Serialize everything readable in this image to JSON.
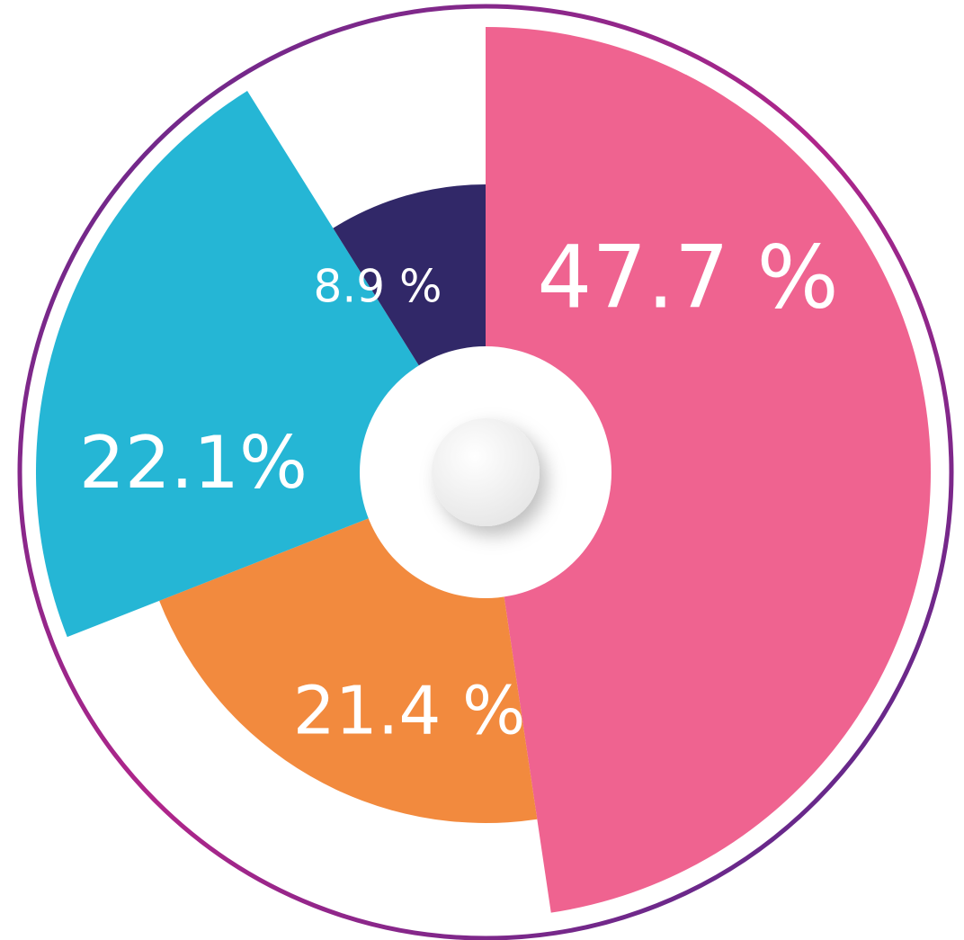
{
  "chart_data": {
    "type": "pie",
    "categories": [
      null,
      null,
      null,
      null
    ],
    "values": [
      47.7,
      21.4,
      22.1,
      8.9
    ],
    "value_labels": [
      "47.7 %",
      "21.4 %",
      "22.1%",
      "8.9 %"
    ],
    "colors": [
      "#ef6390",
      "#f28a3e",
      "#25b6d5",
      "#312868"
    ]
  }
}
